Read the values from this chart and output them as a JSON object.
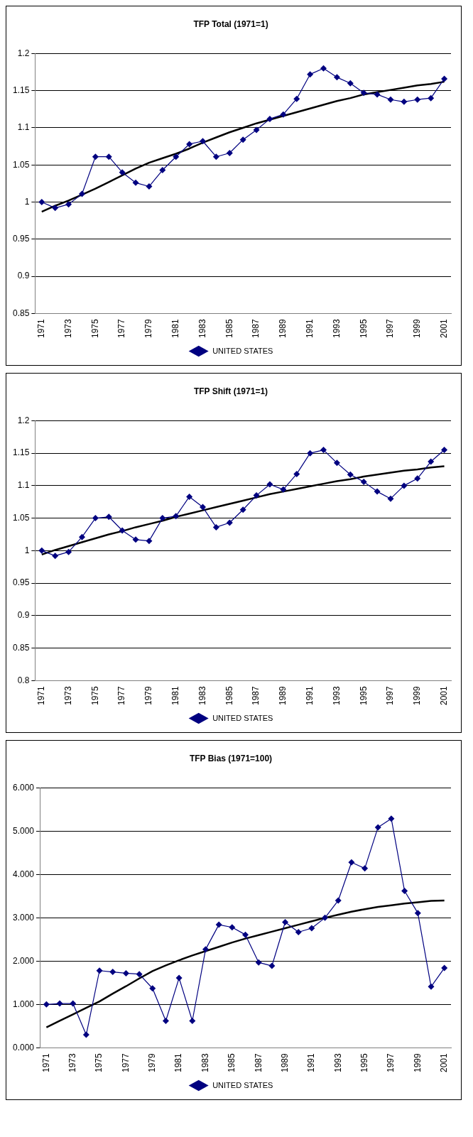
{
  "chart_data": [
    {
      "type": "line",
      "title": "TFP Total (1971=1)",
      "categories": [
        "1971",
        null,
        "1973",
        null,
        "1975",
        null,
        "1977",
        null,
        "1979",
        null,
        "1981",
        null,
        "1983",
        null,
        "1985",
        null,
        "1987",
        null,
        "1989",
        null,
        "1991",
        null,
        "1993",
        null,
        "1995",
        null,
        "1997",
        null,
        "1999",
        null,
        "2001"
      ],
      "series": [
        {
          "name": "UNITED STATES",
          "color": "#000080",
          "values": [
            1.0,
            0.992,
            0.997,
            1.011,
            1.061,
            1.061,
            1.04,
            1.026,
            1.021,
            1.043,
            1.061,
            1.078,
            1.082,
            1.061,
            1.066,
            1.084,
            1.097,
            1.112,
            1.118,
            1.139,
            1.172,
            1.18,
            1.168,
            1.16,
            1.147,
            1.145,
            1.138,
            1.135,
            1.138,
            1.14,
            1.166
          ]
        },
        {
          "type": "line",
          "color": "#000000",
          "marker": "none",
          "values": [
            0.987,
            0.995,
            1.002,
            1.01,
            1.018,
            1.027,
            1.036,
            1.045,
            1.053,
            1.059,
            1.065,
            1.072,
            1.08,
            1.087,
            1.094,
            1.1,
            1.106,
            1.111,
            1.116,
            1.121,
            1.126,
            1.131,
            1.136,
            1.14,
            1.145,
            1.148,
            1.151,
            1.154,
            1.157,
            1.159,
            1.162
          ]
        }
      ],
      "ylim": [
        0.85,
        1.2
      ],
      "yticks": [
        0.85,
        0.9,
        0.95,
        1,
        1.05,
        1.1,
        1.15,
        1.2
      ],
      "grid": "y",
      "legend": "bottom",
      "marker": "diamond"
    },
    {
      "type": "line",
      "title": "TFP Shift (1971=1)",
      "categories": [
        "1971",
        null,
        "1973",
        null,
        "1975",
        null,
        "1977",
        null,
        "1979",
        null,
        "1981",
        null,
        "1983",
        null,
        "1985",
        null,
        "1987",
        null,
        "1989",
        null,
        "1991",
        null,
        "1993",
        null,
        "1995",
        null,
        "1997",
        null,
        "1999",
        null,
        "2001"
      ],
      "series": [
        {
          "name": "UNITED STATES",
          "color": "#000080",
          "values": [
            1.0,
            0.992,
            0.998,
            1.021,
            1.05,
            1.052,
            1.031,
            1.017,
            1.015,
            1.05,
            1.053,
            1.083,
            1.067,
            1.036,
            1.043,
            1.063,
            1.085,
            1.102,
            1.094,
            1.118,
            1.15,
            1.155,
            1.135,
            1.117,
            1.106,
            1.091,
            1.08,
            1.1,
            1.111,
            1.137,
            1.155
          ]
        },
        {
          "type": "line",
          "color": "#000000",
          "marker": "none",
          "values": [
            0.994,
            1.001,
            1.007,
            1.013,
            1.019,
            1.025,
            1.03,
            1.036,
            1.041,
            1.046,
            1.052,
            1.057,
            1.062,
            1.067,
            1.072,
            1.077,
            1.082,
            1.087,
            1.091,
            1.095,
            1.099,
            1.103,
            1.107,
            1.11,
            1.114,
            1.117,
            1.12,
            1.123,
            1.125,
            1.128,
            1.13
          ]
        }
      ],
      "ylim": [
        0.8,
        1.2
      ],
      "yticks": [
        0.8,
        0.85,
        0.9,
        0.95,
        1,
        1.05,
        1.1,
        1.15,
        1.2
      ],
      "grid": "y",
      "legend": "bottom",
      "marker": "diamond"
    },
    {
      "type": "line",
      "title": "TFP Bias (1971=100)",
      "categories": [
        "1971",
        null,
        "1973",
        null,
        "1975",
        null,
        "1977",
        null,
        "1979",
        null,
        "1981",
        null,
        "1983",
        null,
        "1985",
        null,
        "1987",
        null,
        "1989",
        null,
        "1991",
        null,
        "1993",
        null,
        "1995",
        null,
        "1997",
        null,
        "1999",
        null,
        "2001"
      ],
      "series": [
        {
          "name": "UNITED STATES",
          "color": "#000080",
          "values": [
            1.0,
            1.02,
            1.02,
            0.3,
            1.78,
            1.75,
            1.72,
            1.7,
            1.37,
            0.62,
            1.61,
            0.62,
            2.27,
            2.84,
            2.78,
            2.61,
            1.97,
            1.89,
            2.9,
            2.67,
            2.76,
            3.0,
            3.4,
            4.28,
            4.14,
            5.09,
            5.29,
            3.62,
            3.11,
            1.41,
            1.84
          ]
        },
        {
          "type": "line",
          "color": "#000000",
          "marker": "none",
          "values": [
            0.47,
            0.62,
            0.77,
            0.92,
            1.07,
            1.25,
            1.42,
            1.6,
            1.77,
            1.9,
            2.02,
            2.13,
            2.23,
            2.33,
            2.43,
            2.52,
            2.6,
            2.68,
            2.76,
            2.84,
            2.92,
            3.0,
            3.07,
            3.14,
            3.2,
            3.25,
            3.29,
            3.33,
            3.36,
            3.39,
            3.4
          ]
        }
      ],
      "ylim": [
        0,
        6
      ],
      "yticks": [
        {
          "value": 0,
          "label": "0.000"
        },
        {
          "value": 1,
          "label": "1.000"
        },
        {
          "value": 2,
          "label": "2.000"
        },
        {
          "value": 3,
          "label": "3.000"
        },
        {
          "value": 4,
          "label": "4.000"
        },
        {
          "value": 5,
          "label": "5.000"
        },
        {
          "value": 6,
          "label": "6.000"
        }
      ],
      "grid": "y",
      "legend": "bottom",
      "marker": "diamond"
    }
  ]
}
